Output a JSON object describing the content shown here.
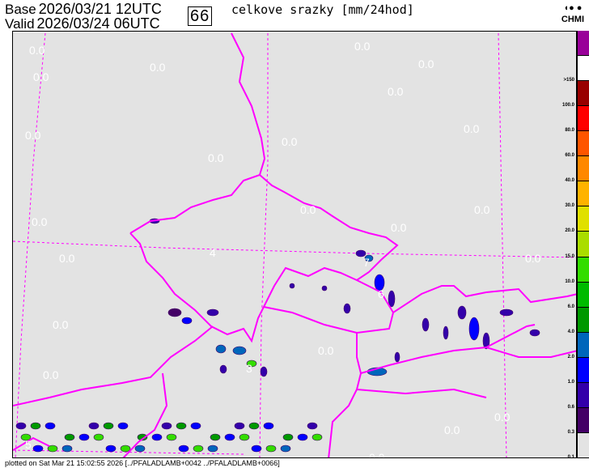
{
  "header": {
    "base_label": "Base",
    "base_value": "2026/03/21 12UTC",
    "valid_label": "Valid",
    "valid_value": "2026/03/24 06UTC",
    "forecast_hour": "66",
    "title": "celkove srazky [mm/24hod]",
    "logo_text": "CHMI"
  },
  "map": {
    "labels": [
      "0.0",
      "0.0",
      "0.0",
      "0.0",
      "0.0",
      "0.0",
      "0.0",
      "0.0",
      "0.0",
      "0.0",
      "0.0",
      "0.0",
      "0.0",
      "0.0",
      "0.0",
      "0.0",
      "0.0",
      "0.0",
      "0.0",
      "0.0",
      "0.0",
      "0.0",
      "4",
      "7",
      "6",
      "3",
      "5"
    ],
    "border_color": "#ff00ff"
  },
  "legend": {
    "items": [
      {
        "label": "",
        "color": "#990099"
      },
      {
        "label": ">150",
        "color": "#ffffff"
      },
      {
        "label": "100.0",
        "color": "#990000"
      },
      {
        "label": "80.0",
        "color": "#ff0000"
      },
      {
        "label": "60.0",
        "color": "#ff5500"
      },
      {
        "label": "40.0",
        "color": "#ff8800"
      },
      {
        "label": "30.0",
        "color": "#ffb300"
      },
      {
        "label": "20.0",
        "color": "#e0e000"
      },
      {
        "label": "15.0",
        "color": "#aadd00"
      },
      {
        "label": "10.0",
        "color": "#33dd00"
      },
      {
        "label": "6.0",
        "color": "#00bb00"
      },
      {
        "label": "4.0",
        "color": "#009900"
      },
      {
        "label": "2.0",
        "color": "#0066bb"
      },
      {
        "label": "1.0",
        "color": "#0000ff"
      },
      {
        "label": "0.6",
        "color": "#3300aa"
      },
      {
        "label": "0.3",
        "color": "#440066"
      },
      {
        "label": "0.1",
        "color": "#e3e3e3"
      }
    ]
  },
  "footer": {
    "text": "plotted on Sat Mar 21 15:02:55 2026 [../PFALADLAMB+0042  ../PFALADLAMB+0066]"
  }
}
